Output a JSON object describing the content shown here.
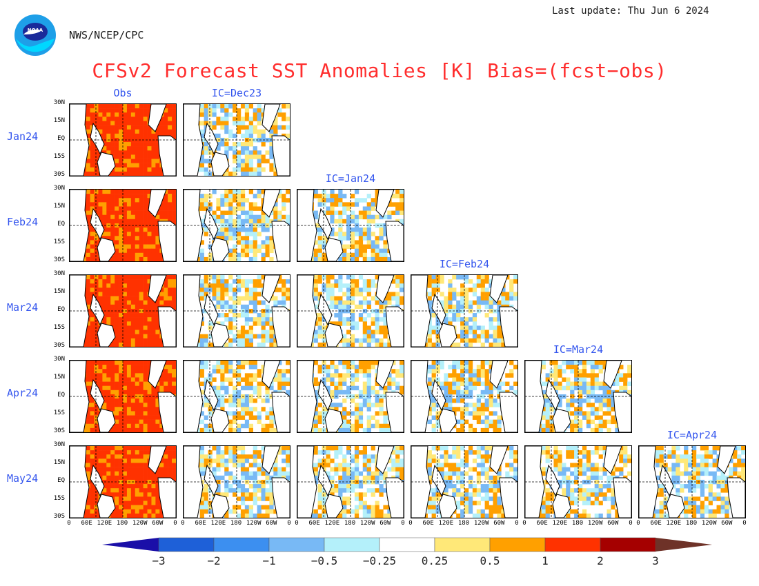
{
  "header": {
    "logo_text": "NOAA",
    "agency": "NWS/NCEP/CPC",
    "last_update": "Last update: Thu Jun  6 2024",
    "title": "CFSv2 Forecast SST Anomalies [K] Bias=(fcst−obs)"
  },
  "chart_data": {
    "type": "heatmap",
    "title": "CFSv2 Forecast SST Anomalies [K] Bias=(fcst−obs)",
    "units": "K",
    "columns": [
      "Obs",
      "IC=Dec23",
      "IC=Jan24",
      "IC=Feb24",
      "IC=Mar24",
      "IC=Apr24"
    ],
    "rows": [
      "Jan24",
      "Feb24",
      "Mar24",
      "Apr24",
      "May24"
    ],
    "lat_ticks": [
      "30N",
      "15N",
      "EQ",
      "15S",
      "30S"
    ],
    "lon_ticks": [
      "0",
      "60E",
      "120E",
      "180",
      "120W",
      "60W",
      "0"
    ],
    "panels_per_row": [
      2,
      3,
      4,
      5,
      6
    ],
    "colorbar": {
      "boundaries": [
        "−3",
        "−2",
        "−1",
        "−0.5",
        "−0.25",
        "0.25",
        "0.5",
        "1",
        "2",
        "3"
      ],
      "colors": [
        "#1a0fa8",
        "#1e60d8",
        "#3c8ff0",
        "#78b9f5",
        "#b4f0fa",
        "#ffffff",
        "#ffe878",
        "#ffa000",
        "#ff3200",
        "#a50000",
        "#6e3228"
      ]
    }
  }
}
